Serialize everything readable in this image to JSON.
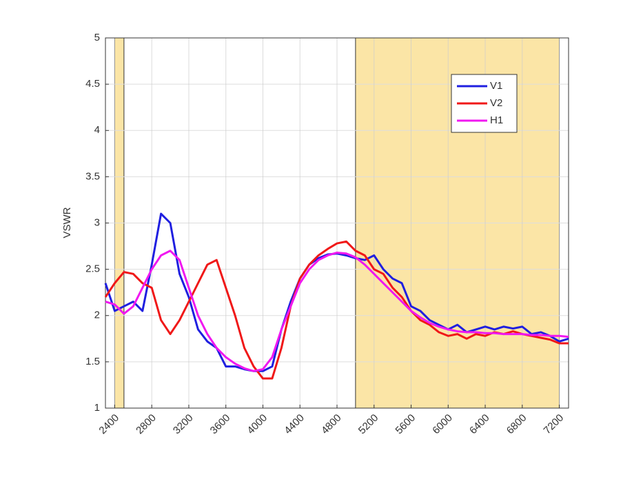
{
  "chart_data": {
    "type": "line",
    "ylabel": "VSWR",
    "x": [
      2300,
      2400,
      2500,
      2600,
      2700,
      2800,
      2900,
      3000,
      3100,
      3200,
      3300,
      3400,
      3500,
      3600,
      3700,
      3800,
      3900,
      4000,
      4100,
      4200,
      4300,
      4400,
      4500,
      4600,
      4700,
      4800,
      4900,
      5000,
      5100,
      5200,
      5300,
      5400,
      5500,
      5600,
      5700,
      5800,
      5900,
      6000,
      6100,
      6200,
      6300,
      6400,
      6500,
      6600,
      6700,
      6800,
      6900,
      7000,
      7100,
      7200,
      7300
    ],
    "series": [
      {
        "name": "V1",
        "color": "#1f1fe0",
        "values": [
          2.35,
          2.05,
          2.1,
          2.15,
          2.05,
          2.55,
          3.1,
          3.0,
          2.45,
          2.2,
          1.85,
          1.72,
          1.65,
          1.45,
          1.45,
          1.42,
          1.4,
          1.4,
          1.45,
          1.85,
          2.15,
          2.4,
          2.55,
          2.62,
          2.66,
          2.67,
          2.65,
          2.62,
          2.6,
          2.65,
          2.5,
          2.4,
          2.35,
          2.1,
          2.05,
          1.95,
          1.9,
          1.85,
          1.9,
          1.82,
          1.85,
          1.88,
          1.85,
          1.88,
          1.86,
          1.88,
          1.8,
          1.82,
          1.78,
          1.72,
          1.75
        ]
      },
      {
        "name": "V2",
        "color": "#f01818",
        "values": [
          2.2,
          2.35,
          2.47,
          2.45,
          2.35,
          2.3,
          1.95,
          1.8,
          1.95,
          2.15,
          2.35,
          2.55,
          2.6,
          2.3,
          2.0,
          1.65,
          1.45,
          1.32,
          1.32,
          1.65,
          2.1,
          2.4,
          2.55,
          2.65,
          2.72,
          2.78,
          2.8,
          2.7,
          2.65,
          2.5,
          2.45,
          2.3,
          2.2,
          2.05,
          1.95,
          1.9,
          1.82,
          1.78,
          1.8,
          1.75,
          1.8,
          1.78,
          1.82,
          1.8,
          1.83,
          1.8,
          1.78,
          1.76,
          1.74,
          1.7,
          1.7
        ]
      },
      {
        "name": "H1",
        "color": "#f018f0",
        "values": [
          2.15,
          2.12,
          2.02,
          2.1,
          2.3,
          2.5,
          2.65,
          2.7,
          2.6,
          2.3,
          2.0,
          1.8,
          1.65,
          1.55,
          1.48,
          1.43,
          1.4,
          1.42,
          1.55,
          1.85,
          2.1,
          2.35,
          2.5,
          2.6,
          2.65,
          2.68,
          2.67,
          2.63,
          2.55,
          2.45,
          2.35,
          2.25,
          2.15,
          2.05,
          1.98,
          1.92,
          1.88,
          1.85,
          1.83,
          1.82,
          1.82,
          1.81,
          1.81,
          1.8,
          1.8,
          1.8,
          1.79,
          1.79,
          1.78,
          1.78,
          1.77
        ]
      }
    ],
    "bands": [
      [
        2400,
        2500
      ],
      [
        5000,
        7200
      ]
    ],
    "band_color": "#fbe5a6",
    "xlim": [
      2300,
      7300
    ],
    "xticks": [
      2400,
      2800,
      3200,
      3600,
      4000,
      4400,
      4800,
      5200,
      5600,
      6000,
      6400,
      6800,
      7200
    ],
    "ylim": [
      1,
      5
    ],
    "yticks": [
      1,
      1.5,
      2,
      2.5,
      3,
      3.5,
      4,
      4.5,
      5
    ],
    "grid": true,
    "legend": "upper right"
  }
}
